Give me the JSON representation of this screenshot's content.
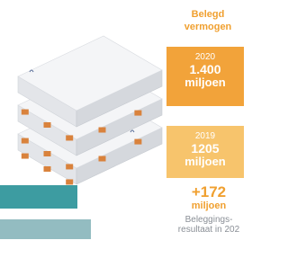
{
  "header": {
    "title": "Belegd vermogen"
  },
  "boxes": [
    {
      "year": "2020",
      "amount": "1.400",
      "unit": "miljoen"
    },
    {
      "year": "2019",
      "amount": "1205",
      "unit": "miljoen"
    }
  ],
  "result": {
    "amount": "+172",
    "unit": "miljoen",
    "label_1": "Beleggings-",
    "label_2": "resultaat in 202"
  }
}
